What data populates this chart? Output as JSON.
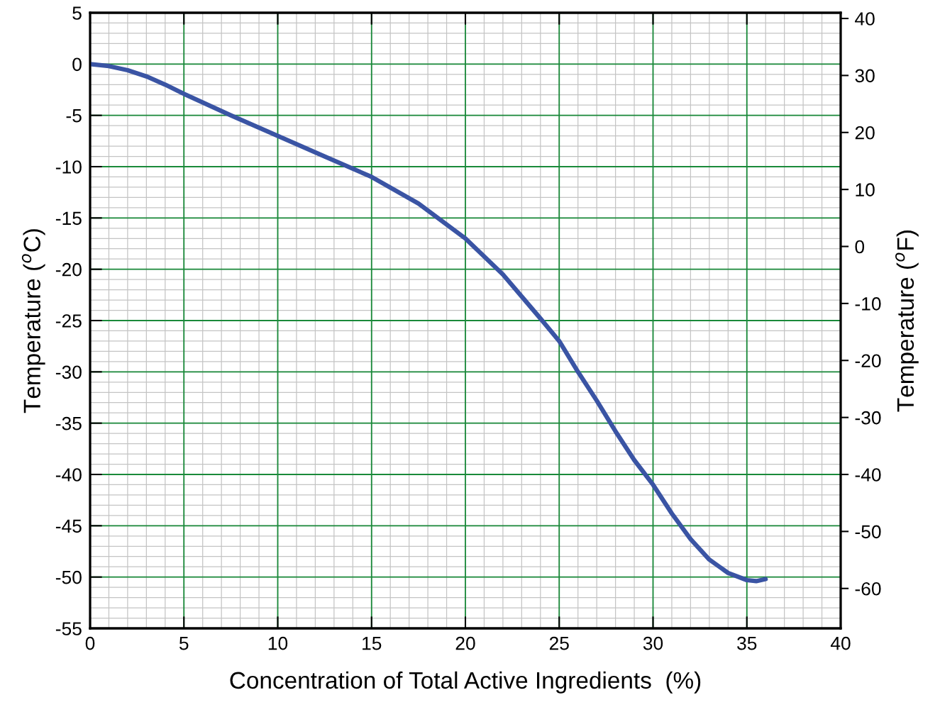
{
  "chart_data": {
    "type": "line",
    "xlabel": "Concentration of Total Active Ingredients  (%)",
    "ylabel": "Temperature ($^{o}$C)",
    "y2label": "Temperature ($^{o}$F)",
    "x": [
      0,
      1,
      2,
      3,
      4,
      5,
      7.5,
      10,
      12.5,
      15,
      17.5,
      20,
      22,
      24,
      25,
      26,
      27,
      28,
      29,
      30,
      31,
      32,
      33,
      34,
      35,
      35.5,
      36
    ],
    "series": [
      {
        "color": "#3a54a4",
        "values": [
          0,
          -0.2,
          -0.6,
          -1.2,
          -2.0,
          -2.9,
          -5.0,
          -7.0,
          -9.0,
          -11.0,
          -13.6,
          -17.0,
          -20.5,
          -24.8,
          -27.0,
          -30.0,
          -32.8,
          -35.8,
          -38.6,
          -41.0,
          -43.8,
          -46.3,
          -48.3,
          -49.6,
          -50.3,
          -50.4,
          -50.2
        ]
      }
    ],
    "xlim": [
      0,
      40
    ],
    "xticks": [
      0,
      5,
      10,
      15,
      20,
      25,
      30,
      35,
      40
    ],
    "ylim": [
      -55,
      5
    ],
    "yticks": [
      -55,
      -50,
      -45,
      -40,
      -35,
      -30,
      -25,
      -20,
      -15,
      -10,
      -5,
      0,
      5
    ],
    "y2lim": [
      -67,
      41
    ],
    "y2ticks": [
      -60,
      -50,
      -40,
      -30,
      -20,
      -10,
      0,
      10,
      20,
      30,
      40
    ],
    "grid": true,
    "marker": "none",
    "line_style": "solid"
  }
}
